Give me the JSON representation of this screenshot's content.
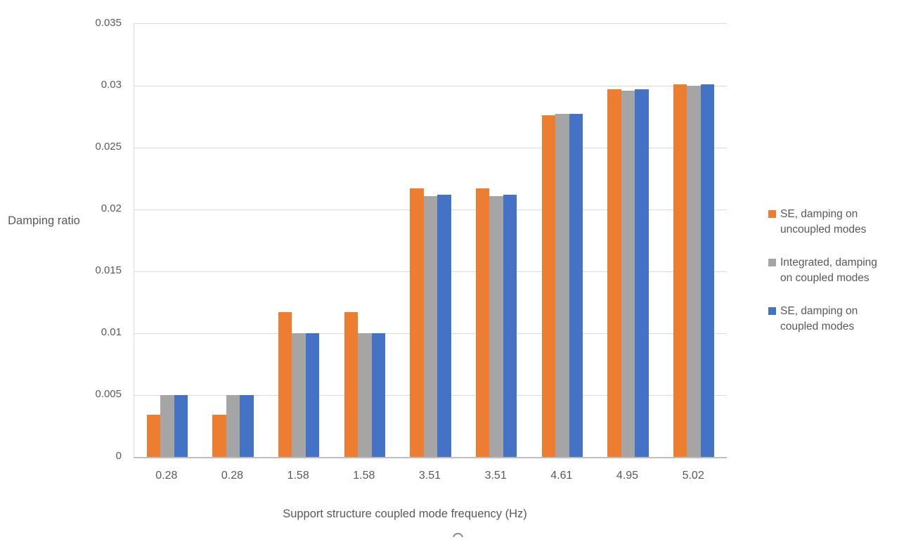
{
  "chart_data": {
    "type": "bar",
    "title": "",
    "categories": [
      "0.28",
      "0.28",
      "1.58",
      "1.58",
      "3.51",
      "3.51",
      "4.61",
      "4.95",
      "5.02"
    ],
    "series": [
      {
        "name": "SE, damping on uncoupled modes",
        "label_lines": [
          "SE, damping on",
          "uncoupled modes"
        ],
        "color": "#ED7D31",
        "values": [
          0.0034,
          0.0034,
          0.0117,
          0.0117,
          0.0217,
          0.0217,
          0.0276,
          0.0297,
          0.0301
        ]
      },
      {
        "name": "Integrated, damping on coupled modes",
        "label_lines": [
          "Integrated, damping",
          "on coupled modes"
        ],
        "color": "#A5A5A5",
        "values": [
          0.005,
          0.005,
          0.01,
          0.01,
          0.0211,
          0.0211,
          0.0277,
          0.0296,
          0.03
        ]
      },
      {
        "name": "SE, damping on coupled modes",
        "label_lines": [
          "SE, damping on",
          "coupled modes"
        ],
        "color": "#4472C4",
        "values": [
          0.005,
          0.005,
          0.01,
          0.01,
          0.0212,
          0.0212,
          0.0277,
          0.0297,
          0.0301
        ]
      }
    ],
    "xlabel": "Support structure coupled mode frequency (Hz)",
    "ylabel": "Damping ratio",
    "ylim": [
      0,
      0.035
    ],
    "ytick_interval": 0.005,
    "yticks": [
      "0",
      "0.005",
      "0.01",
      "0.015",
      "0.02",
      "0.025",
      "0.03",
      "0.035"
    ],
    "grid": true,
    "legend_position": "right",
    "colors": {
      "axis_text": "#595959",
      "gridline": "#D9D9D9",
      "axis_line": "#BFBFBF",
      "background": "#FFFFFF"
    }
  }
}
